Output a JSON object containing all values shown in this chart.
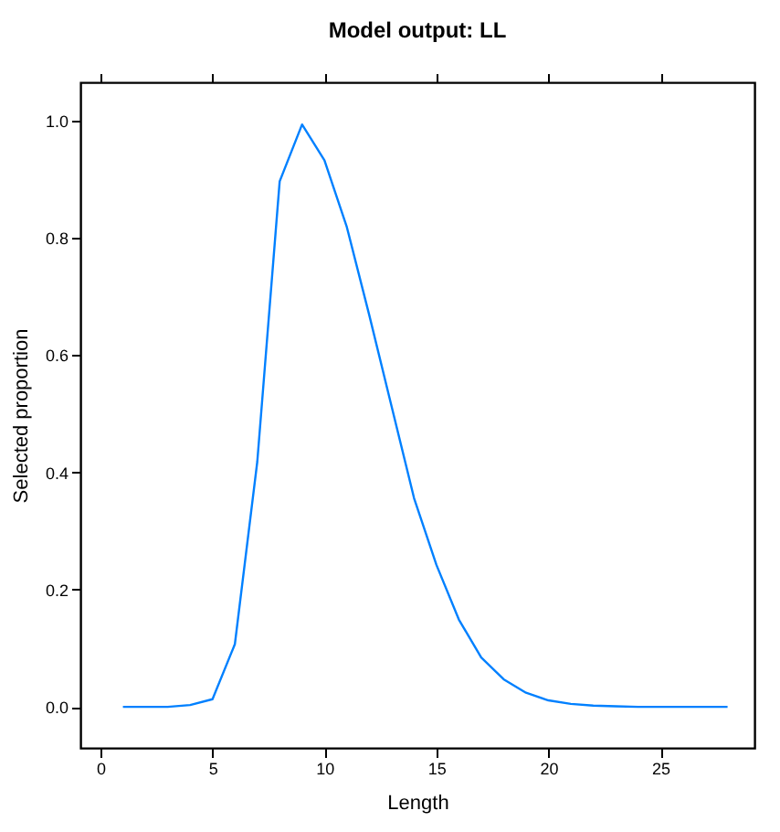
{
  "chart_data": {
    "type": "line",
    "title": "Model output: LL",
    "xlabel": "Length",
    "ylabel": "Selected proportion",
    "x": [
      1,
      2,
      3,
      4,
      5,
      6,
      7,
      8,
      9,
      10,
      11,
      12,
      13,
      14,
      15,
      16,
      17,
      18,
      19,
      20,
      21,
      22,
      23,
      24,
      25,
      26,
      27,
      28
    ],
    "series": [
      {
        "color": "#0080ff",
        "values": [
          0,
          0,
          0,
          0.003,
          0.013,
          0.107,
          0.418,
          0.896,
          0.993,
          0.932,
          0.818,
          0.668,
          0.512,
          0.356,
          0.242,
          0.149,
          0.084,
          0.047,
          0.024,
          0.011,
          0.005,
          0.002,
          0.001,
          0,
          0,
          0,
          0,
          0
        ]
      }
    ],
    "xlim": [
      -0.9,
      29.2
    ],
    "xticks": [
      0,
      5,
      10,
      15,
      20,
      25
    ],
    "ylim": [
      -0.07,
      1.065
    ],
    "yticks": [
      {
        "value": 0,
        "label": "0.0"
      },
      {
        "value": 0.2,
        "label": "0.2"
      },
      {
        "value": 0.4,
        "label": "0.4"
      },
      {
        "value": 0.6,
        "label": "0.6"
      },
      {
        "value": 0.8,
        "label": "0.8"
      },
      {
        "value": 1,
        "label": "1.0"
      }
    ],
    "grid": false
  }
}
